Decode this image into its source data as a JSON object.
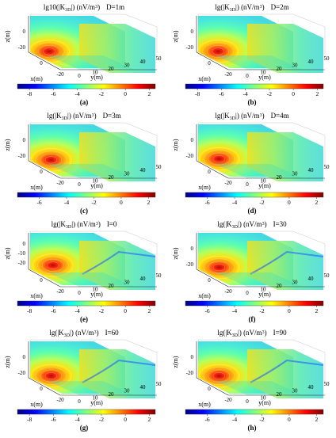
{
  "figure": {
    "panels": [
      {
        "id": "a",
        "title_main": "lg10(|K",
        "title_sub": "3D",
        "title_tail": "|) (nV/m",
        "title_sup": "3",
        "title_close": ")",
        "param": "D=1m",
        "label": "(a)",
        "cmin": -9,
        "cticks": [
          "-8",
          "-6",
          "-4",
          "-2",
          "0",
          "2"
        ],
        "cticks_v": [
          -8,
          -6,
          -4,
          -2,
          0,
          2
        ],
        "hot_x": 0.2,
        "hot_y": 0.68,
        "variant": "D"
      },
      {
        "id": "b",
        "title_main": "lg(|K",
        "title_sub": "3D",
        "title_tail": "|) (nV/m",
        "title_sup": "3",
        "title_close": ")",
        "param": "D=2m",
        "label": "(b)",
        "cmin": -9,
        "cticks": [
          "-8",
          "-6",
          "-4",
          "-2",
          "0",
          "2"
        ],
        "cticks_v": [
          -8,
          -6,
          -4,
          -2,
          0,
          2
        ],
        "hot_x": 0.21,
        "hot_y": 0.68,
        "variant": "D"
      },
      {
        "id": "c",
        "title_main": "lg(|K",
        "title_sub": "3D",
        "title_tail": "|) (nV/m",
        "title_sup": "3",
        "title_close": ")",
        "param": "D=3m",
        "label": "(c)",
        "cmin": -7.6,
        "cticks": [
          "-6",
          "-4",
          "-2",
          "0",
          "2"
        ],
        "cticks_v": [
          -6,
          -4,
          -2,
          0,
          2
        ],
        "hot_x": 0.22,
        "hot_y": 0.68,
        "variant": "D"
      },
      {
        "id": "d",
        "title_main": "lg(|K",
        "title_sub": "3D",
        "title_tail": "|) (nV/m",
        "title_sup": "3",
        "title_close": ")",
        "param": "D=4m",
        "label": "(d)",
        "cmin": -7.6,
        "cticks": [
          "-6",
          "-4",
          "-2",
          "0",
          "2"
        ],
        "cticks_v": [
          -6,
          -4,
          -2,
          0,
          2
        ],
        "hot_x": 0.22,
        "hot_y": 0.66,
        "variant": "D"
      },
      {
        "id": "e",
        "title_main": "lg(|K",
        "title_sub": "3D",
        "title_tail": "|) (nV/m",
        "title_sup": "3",
        "title_close": ")",
        "param": "I=0",
        "label": "(e)",
        "cmin": -9,
        "cticks": [
          "-8",
          "-6",
          "-4",
          "-2",
          "0",
          "2"
        ],
        "cticks_v": [
          -8,
          -6,
          -4,
          -2,
          0,
          2
        ],
        "hot_x": 0.24,
        "hot_y": 0.62,
        "variant": "I0"
      },
      {
        "id": "f",
        "title_main": "lg(|K",
        "title_sub": "3D",
        "title_tail": "|) (nV/m",
        "title_sup": "3",
        "title_close": ")",
        "param": "I=30",
        "label": "(f)",
        "cmin": -7.6,
        "cticks": [
          "-6",
          "-4",
          "-2",
          "0",
          "2"
        ],
        "cticks_v": [
          -6,
          -4,
          -2,
          0,
          2
        ],
        "hot_x": 0.22,
        "hot_y": 0.66,
        "variant": "I"
      },
      {
        "id": "g",
        "title_main": "lg(|K",
        "title_sub": "3D",
        "title_tail": "|) (nV/m",
        "title_sup": "3",
        "title_close": ")",
        "param": "I=60",
        "label": "(g)",
        "cmin": -9,
        "cticks": [
          "-8",
          "-6",
          "-4",
          "-2",
          "0",
          "2"
        ],
        "cticks_v": [
          -8,
          -6,
          -4,
          -2,
          0,
          2
        ],
        "hot_x": 0.22,
        "hot_y": 0.66,
        "variant": "I"
      },
      {
        "id": "h",
        "title_main": "lg(|K",
        "title_sub": "3D",
        "title_tail": "|) (nV/m",
        "title_sup": "3",
        "title_close": ")",
        "param": "I=90",
        "label": "(h)",
        "cmin": -7.6,
        "cticks": [
          "-6",
          "-4",
          "-2",
          "0",
          "2"
        ],
        "cticks_v": [
          -6,
          -4,
          -2,
          0,
          2
        ],
        "hot_x": 0.22,
        "hot_y": 0.66,
        "variant": "I"
      }
    ],
    "axes": {
      "zlabel": "z(m)",
      "xlabel": "x(m)",
      "ylabel": "y(m)",
      "zticks": [
        "0",
        "-20"
      ],
      "xticks": [
        "0",
        "-20"
      ],
      "yticks": [
        "0",
        "10",
        "20",
        "30",
        "40",
        "50"
      ],
      "zticks_e": [
        "0",
        "-10",
        "-20"
      ]
    }
  },
  "chart_data": [
    {
      "type": "heatmap",
      "panel": "a",
      "title": "lg10(|K3D|) (nV/m3)  D=1m",
      "xlabel": "x(m)",
      "ylabel": "y(m)",
      "zlabel": "z(m)",
      "colorbar_range": [
        -9,
        2.5
      ],
      "colorbar_ticks": [
        -8,
        -6,
        -4,
        -2,
        0,
        2
      ],
      "y_ticks": [
        0,
        10,
        20,
        30,
        40,
        50
      ]
    },
    {
      "type": "heatmap",
      "panel": "b",
      "title": "lg(|K3D|) (nV/m3)  D=2m",
      "xlabel": "x(m)",
      "ylabel": "y(m)",
      "zlabel": "z(m)",
      "colorbar_range": [
        -9,
        2.5
      ],
      "colorbar_ticks": [
        -8,
        -6,
        -4,
        -2,
        0,
        2
      ],
      "y_ticks": [
        0,
        10,
        20,
        30,
        40,
        50
      ]
    },
    {
      "type": "heatmap",
      "panel": "c",
      "title": "lg(|K3D|) (nV/m3)  D=3m",
      "xlabel": "x(m)",
      "ylabel": "y(m)",
      "zlabel": "z(m)",
      "colorbar_range": [
        -7.6,
        2.5
      ],
      "colorbar_ticks": [
        -6,
        -4,
        -2,
        0,
        2
      ],
      "y_ticks": [
        0,
        10,
        20,
        30,
        40,
        50
      ]
    },
    {
      "type": "heatmap",
      "panel": "d",
      "title": "lg(|K3D|) (nV/m3)  D=4m",
      "xlabel": "x(m)",
      "ylabel": "y(m)",
      "zlabel": "z(m)",
      "colorbar_range": [
        -7.6,
        2.5
      ],
      "colorbar_ticks": [
        -6,
        -4,
        -2,
        0,
        2
      ],
      "y_ticks": [
        0,
        10,
        20,
        30,
        40,
        50
      ]
    },
    {
      "type": "heatmap",
      "panel": "e",
      "title": "lg(|K3D|) (nV/m3)  I=0",
      "xlabel": "x(m)",
      "ylabel": "y(m)",
      "zlabel": "z(m)",
      "colorbar_range": [
        -9,
        2.5
      ],
      "colorbar_ticks": [
        -8,
        -6,
        -4,
        -2,
        0,
        2
      ],
      "y_ticks": [
        0,
        10,
        20,
        30,
        40,
        50
      ]
    },
    {
      "type": "heatmap",
      "panel": "f",
      "title": "lg(|K3D|) (nV/m3)  I=30",
      "xlabel": "x(m)",
      "ylabel": "y(m)",
      "zlabel": "z(m)",
      "colorbar_range": [
        -7.6,
        2.5
      ],
      "colorbar_ticks": [
        -6,
        -4,
        -2,
        0,
        2
      ],
      "y_ticks": [
        0,
        10,
        20,
        30,
        40,
        50
      ]
    },
    {
      "type": "heatmap",
      "panel": "g",
      "title": "lg(|K3D|) (nV/m3)  I=60",
      "xlabel": "x(m)",
      "ylabel": "y(m)",
      "zlabel": "z(m)",
      "colorbar_range": [
        -9,
        2.5
      ],
      "colorbar_ticks": [
        -8,
        -6,
        -4,
        -2,
        0,
        2
      ],
      "y_ticks": [
        0,
        10,
        20,
        30,
        40,
        50
      ]
    },
    {
      "type": "heatmap",
      "panel": "h",
      "title": "lg(|K3D|) (nV/m3)  I=90",
      "xlabel": "x(m)",
      "ylabel": "y(m)",
      "zlabel": "z(m)",
      "colorbar_range": [
        -7.6,
        2.5
      ],
      "colorbar_ticks": [
        -6,
        -4,
        -2,
        0,
        2
      ],
      "y_ticks": [
        0,
        10,
        20,
        30,
        40,
        50
      ]
    }
  ]
}
